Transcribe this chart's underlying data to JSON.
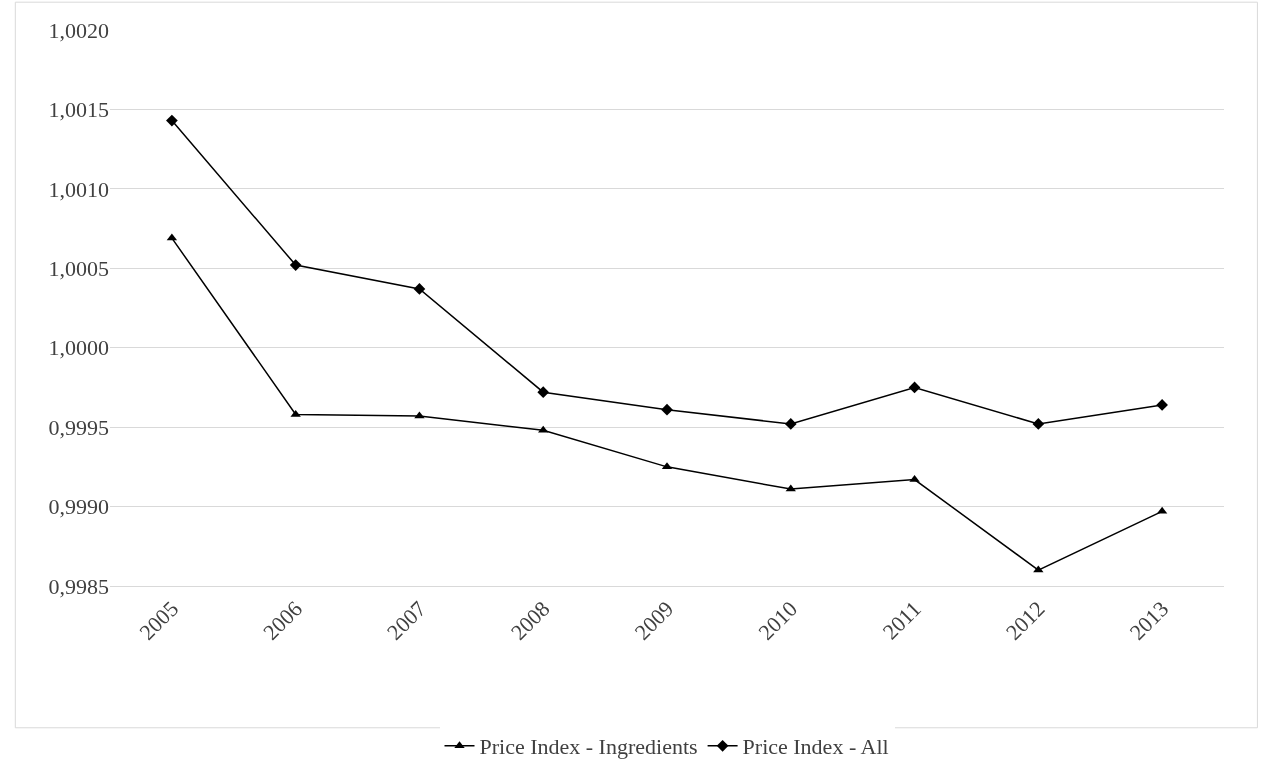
{
  "chart_data": {
    "type": "line",
    "categories": [
      "2005",
      "2006",
      "2007",
      "2008",
      "2009",
      "2010",
      "2011",
      "2012",
      "2013"
    ],
    "series": [
      {
        "name": "Price Index - Ingredients",
        "color": "#000000",
        "marker": "triangle",
        "values": [
          1.00069,
          0.99958,
          0.99957,
          0.99948,
          0.99925,
          0.99911,
          0.99917,
          0.9986,
          0.99897
        ]
      },
      {
        "name": "Price Index - All",
        "color": "#000000",
        "marker": "diamond",
        "values": [
          1.00143,
          1.00052,
          1.00037,
          0.99972,
          0.99961,
          0.99952,
          0.99975,
          0.99952,
          0.99964
        ]
      }
    ],
    "ylim": [
      0.9985,
      1.002
    ],
    "yticks": [
      {
        "value": 0.9985,
        "label": "0,9985"
      },
      {
        "value": 0.999,
        "label": "0,9990"
      },
      {
        "value": 0.9995,
        "label": "0,9995"
      },
      {
        "value": 1.0,
        "label": "1,0000"
      },
      {
        "value": 1.0005,
        "label": "1,0005"
      },
      {
        "value": 1.001,
        "label": "1,0010"
      },
      {
        "value": 1.0015,
        "label": "1,0015"
      },
      {
        "value": 1.002,
        "label": "1,0020"
      }
    ],
    "grid": "y",
    "legend": "bottom",
    "line_style": "solid"
  }
}
